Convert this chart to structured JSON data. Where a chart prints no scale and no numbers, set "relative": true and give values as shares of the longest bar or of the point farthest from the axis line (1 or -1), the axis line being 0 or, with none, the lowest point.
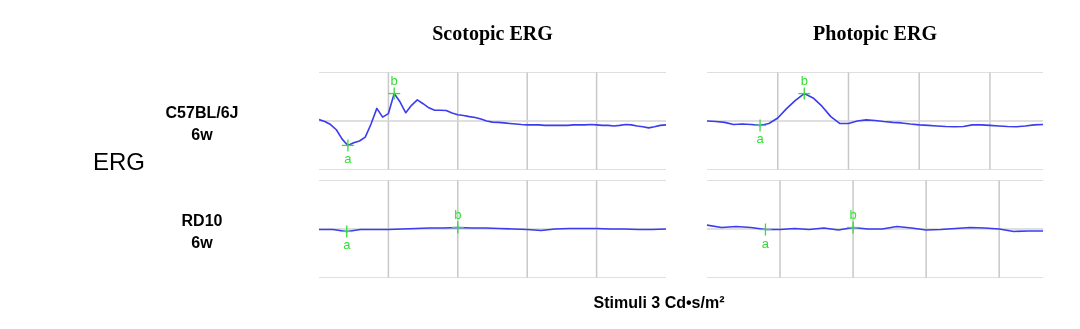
{
  "chart_data": [
    {
      "type": "line",
      "relative": true,
      "title": "Scotopic ERG",
      "ylabel": "C57BL/6J\n6w",
      "annotations": [
        "ERG",
        "a",
        "b"
      ],
      "color": "#3b3bf0",
      "grid": true,
      "categories": [
        null,
        null,
        null,
        null,
        null,
        null,
        null,
        null,
        null,
        null,
        null,
        null,
        null,
        null,
        null,
        null,
        null,
        null,
        null,
        null,
        null,
        null,
        null,
        null,
        null,
        null,
        null,
        null,
        null,
        null,
        null,
        null,
        null,
        null,
        null,
        null,
        null,
        null,
        null,
        null,
        null,
        null,
        null,
        null,
        null,
        null,
        null,
        null,
        null,
        null,
        null,
        null,
        null,
        null,
        null,
        null,
        null,
        null,
        null,
        null,
        null
      ],
      "values": [
        0.05,
        -0.02,
        -0.13,
        -0.32,
        -0.66,
        -0.89,
        -0.79,
        -0.73,
        -0.59,
        -0.11,
        0.46,
        0.14,
        0.27,
        1,
        0.7,
        0.3,
        0.57,
        0.77,
        0.63,
        0.48,
        0.39,
        0.39,
        0.38,
        0.29,
        0.23,
        0.2,
        0.16,
        0.13,
        0.07,
        0,
        -0.04,
        -0.05,
        -0.07,
        -0.09,
        -0.11,
        -0.13,
        -0.14,
        -0.14,
        -0.14,
        -0.16,
        -0.16,
        -0.16,
        -0.16,
        -0.16,
        -0.14,
        -0.14,
        -0.14,
        -0.13,
        -0.14,
        -0.16,
        -0.16,
        -0.18,
        -0.16,
        -0.13,
        -0.14,
        -0.18,
        -0.21,
        -0.25,
        -0.21,
        -0.16,
        -0.14
      ]
    },
    {
      "type": "line",
      "relative": true,
      "title": "Photopic ERG",
      "annotations": [
        "a",
        "b"
      ],
      "color": "#3b3bf0",
      "grid": true,
      "categories": [
        null,
        null,
        null,
        null,
        null,
        null,
        null,
        null,
        null,
        null,
        null,
        null,
        null,
        null,
        null,
        null,
        null,
        null,
        null,
        null,
        null,
        null,
        null,
        null,
        null,
        null,
        null,
        null,
        null,
        null,
        null,
        null,
        null,
        null,
        null,
        null,
        null,
        null,
        null
      ],
      "values": [
        0,
        -0.02,
        -0.05,
        -0.13,
        -0.11,
        -0.13,
        -0.16,
        -0.09,
        0.11,
        0.45,
        0.75,
        1,
        0.84,
        0.54,
        0.16,
        -0.09,
        -0.09,
        0,
        0.04,
        0.02,
        -0.02,
        -0.05,
        -0.07,
        -0.11,
        -0.14,
        -0.16,
        -0.18,
        -0.2,
        -0.21,
        -0.2,
        -0.14,
        -0.14,
        -0.16,
        -0.18,
        -0.2,
        -0.21,
        -0.18,
        -0.14,
        -0.13
      ]
    },
    {
      "type": "line",
      "relative": true,
      "ylabel": "RD10\n6w",
      "xlabel": "Stimuli 3 Cd•s/m²",
      "annotations": [
        "a",
        "b"
      ],
      "color": "#3b3bf0",
      "grid": true,
      "categories": [
        null,
        null,
        null,
        null,
        null,
        null,
        null,
        null,
        null,
        null,
        null,
        null,
        null,
        null,
        null,
        null,
        null,
        null,
        null,
        null,
        null,
        null,
        null,
        null,
        null,
        null
      ],
      "values": [
        -0.2,
        -0.2,
        -1,
        -0.2,
        -0.2,
        -0.2,
        0,
        0.2,
        0.4,
        0.4,
        0.6,
        0.4,
        0.4,
        0.2,
        0,
        -0.2,
        -0.6,
        0,
        0.2,
        0.2,
        0.2,
        0,
        0,
        -0.2,
        -0.2,
        0
      ]
    },
    {
      "type": "line",
      "relative": true,
      "annotations": [
        "a",
        "b"
      ],
      "color": "#3b3bf0",
      "grid": true,
      "categories": [
        null,
        null,
        null,
        null,
        null,
        null,
        null,
        null,
        null,
        null,
        null,
        null,
        null,
        null,
        null,
        null,
        null,
        null,
        null,
        null,
        null,
        null,
        null,
        null
      ],
      "values": [
        1,
        0.38,
        0.63,
        0.38,
        -0.13,
        -0.13,
        0.13,
        -0.13,
        0.25,
        -0.25,
        0.38,
        0,
        0,
        0.63,
        0.25,
        -0.25,
        -0.13,
        0.13,
        0.38,
        0.25,
        0,
        -0.63,
        -0.5,
        -0.5
      ]
    }
  ]
}
